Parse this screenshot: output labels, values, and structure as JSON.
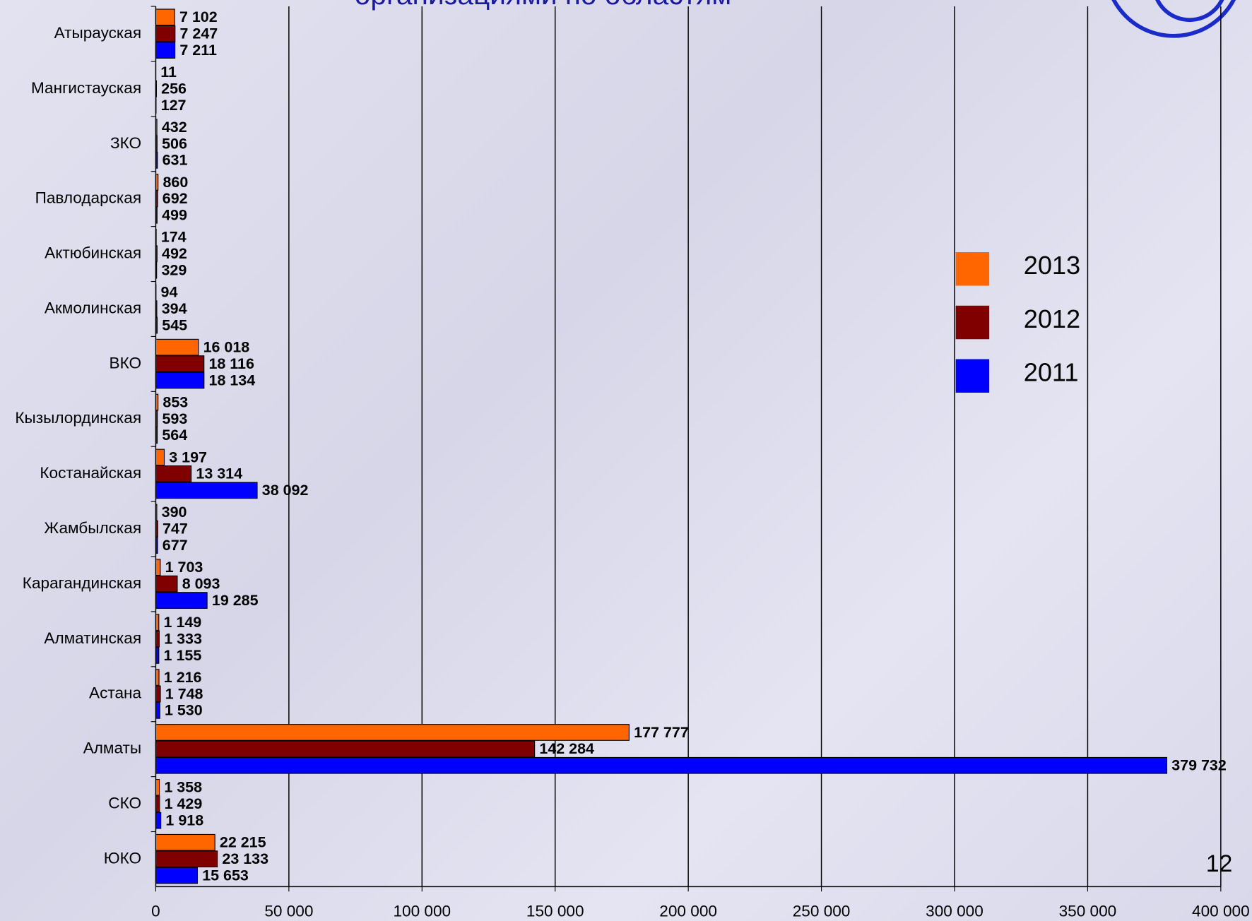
{
  "chart_data": {
    "type": "barh",
    "title": "организациями по областям",
    "page_number": "12",
    "categories": [
      "Атырауская",
      "Мангистауская",
      "ЗКО",
      "Павлодарская",
      "Актюбинская",
      "Акмолинская",
      "ВКО",
      "Кызылординская",
      "Костанайская",
      "Жамбылская",
      "Карагандинская",
      "Алматинская",
      "Астана",
      "Алматы",
      "СКО",
      "ЮКО"
    ],
    "series": [
      {
        "name": "2013",
        "color": "#ff6600",
        "values": [
          7102,
          11,
          432,
          860,
          174,
          94,
          16018,
          853,
          3197,
          390,
          1703,
          1149,
          1216,
          177777,
          1358,
          22215
        ],
        "value_labels": [
          "7 102",
          "11",
          "432",
          "860",
          "174",
          "94",
          "16 018",
          "853",
          "3 197",
          "390",
          "1 703",
          "1 149",
          "1 216",
          "177 777",
          "1 358",
          "22 215"
        ]
      },
      {
        "name": "2012",
        "color": "#800000",
        "values": [
          7247,
          256,
          506,
          692,
          492,
          394,
          18116,
          593,
          13314,
          747,
          8093,
          1333,
          1748,
          142284,
          1429,
          23133
        ],
        "value_labels": [
          "7 247",
          "256",
          "506",
          "692",
          "492",
          "394",
          "18 116",
          "593",
          "13 314",
          "747",
          "8 093",
          "1 333",
          "1 748",
          "142 284",
          "1 429",
          "23 133"
        ]
      },
      {
        "name": "2011",
        "color": "#0000ff",
        "values": [
          7211,
          127,
          631,
          499,
          329,
          545,
          18134,
          564,
          38092,
          677,
          19285,
          1155,
          1530,
          379732,
          1918,
          15653
        ],
        "value_labels": [
          "7 211",
          "127",
          "631",
          "499",
          "329",
          "545",
          "18 134",
          "564",
          "38 092",
          "677",
          "19 285",
          "1 155",
          "1 530",
          "379 732",
          "1 918",
          "15 653"
        ]
      }
    ],
    "xlim": [
      0,
      400000
    ],
    "xticks": [
      0,
      {
        "value": 50000,
        "label": "50 000"
      },
      {
        "value": 100000,
        "label": "100 000"
      },
      {
        "value": 150000,
        "label": "150 000"
      },
      {
        "value": 200000,
        "label": "200 000"
      },
      {
        "value": 250000,
        "label": "250 000"
      },
      {
        "value": 300000,
        "label": "300 000"
      },
      {
        "value": 350000,
        "label": "350 000"
      },
      {
        "value": 400000,
        "label": "400 000"
      }
    ],
    "grid": true,
    "legend": "right"
  }
}
